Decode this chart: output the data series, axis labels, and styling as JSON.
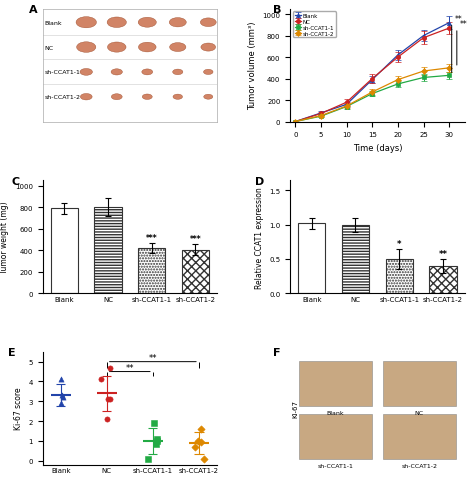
{
  "panel_B": {
    "xlabel": "Time (days)",
    "ylabel": "Tumor volume (mm³)",
    "xlim": [
      -1,
      33
    ],
    "ylim": [
      0,
      1050
    ],
    "xticks": [
      0,
      5,
      10,
      15,
      20,
      25,
      30
    ],
    "yticks": [
      0,
      200,
      400,
      600,
      800,
      1000
    ],
    "days": [
      0,
      5,
      10,
      15,
      20,
      25,
      30
    ],
    "blank_mean": [
      0,
      80,
      160,
      390,
      620,
      800,
      920
    ],
    "blank_err": [
      0,
      15,
      25,
      35,
      45,
      55,
      60
    ],
    "nc_mean": [
      0,
      75,
      180,
      400,
      600,
      780,
      870
    ],
    "nc_err": [
      0,
      12,
      28,
      40,
      50,
      60,
      55
    ],
    "sh1_mean": [
      0,
      50,
      140,
      260,
      350,
      410,
      430
    ],
    "sh1_err": [
      0,
      10,
      20,
      25,
      30,
      30,
      30
    ],
    "sh2_mean": [
      0,
      55,
      145,
      275,
      390,
      470,
      500
    ],
    "sh2_err": [
      0,
      10,
      22,
      28,
      35,
      40,
      40
    ],
    "blank_color": "#2244aa",
    "nc_color": "#cc2222",
    "sh1_color": "#22aa44",
    "sh2_color": "#dd8800",
    "legend_labels": [
      "Blank",
      "NC",
      "sh-CCAT1-1",
      "sh-CCAT1-2"
    ]
  },
  "panel_C": {
    "ylabel": "Tumor weight (mg)",
    "ylim": [
      0,
      1050
    ],
    "yticks": [
      0,
      200,
      400,
      600,
      800,
      1000
    ],
    "categories": [
      "Blank",
      "NC",
      "sh-CCAT1-1",
      "sh-CCAT1-2"
    ],
    "means": [
      790,
      800,
      420,
      405
    ],
    "errors": [
      50,
      80,
      45,
      55
    ],
    "sig_labels": [
      "",
      "",
      "***",
      "***"
    ]
  },
  "panel_D": {
    "ylabel": "Relative CCAT1 expression",
    "ylim": [
      0,
      1.65
    ],
    "yticks": [
      0.0,
      0.5,
      1.0,
      1.5
    ],
    "categories": [
      "Blank",
      "NC",
      "sh-CCAT1-1",
      "sh-CCAT1-2"
    ],
    "means": [
      1.02,
      1.0,
      0.5,
      0.4
    ],
    "errors": [
      0.08,
      0.1,
      0.15,
      0.1
    ],
    "sig_labels": [
      "",
      "",
      "*",
      "**"
    ]
  },
  "panel_E": {
    "ylabel": "Ki-67 score",
    "ylim": [
      -0.2,
      5.5
    ],
    "yticks": [
      0,
      1,
      2,
      3,
      4,
      5
    ],
    "categories": [
      "Blank",
      "NC",
      "sh-CCAT1-1",
      "sh-CCAT1-2"
    ],
    "blank_points": [
      4.1,
      3.2,
      3.3,
      2.9
    ],
    "nc_points": [
      4.7,
      4.1,
      3.1,
      3.1,
      2.1
    ],
    "sh1_points": [
      1.9,
      1.1,
      1.0,
      0.85,
      0.1
    ],
    "sh2_points": [
      1.6,
      1.0,
      0.95,
      0.7,
      0.1
    ],
    "blank_mean": 3.3,
    "blank_sd": 0.55,
    "nc_mean": 3.4,
    "nc_sd": 0.9,
    "sh1_mean": 1.0,
    "sh1_sd": 0.65,
    "sh2_mean": 0.9,
    "sh2_sd": 0.55,
    "blank_color": "#2244aa",
    "nc_color": "#cc2222",
    "sh1_color": "#22aa44",
    "sh2_color": "#dd8800"
  },
  "panel_A": {
    "rows": [
      "Blank",
      "NC",
      "sh-CCAT1-1",
      "sh-CCAT1-2"
    ],
    "n_tumors": 5,
    "tumor_sizes": [
      [
        0.9,
        0.85,
        0.8,
        0.75,
        0.7
      ],
      [
        0.85,
        0.82,
        0.78,
        0.72,
        0.65
      ],
      [
        0.55,
        0.5,
        0.48,
        0.45,
        0.42
      ],
      [
        0.52,
        0.48,
        0.44,
        0.42,
        0.4
      ]
    ]
  }
}
